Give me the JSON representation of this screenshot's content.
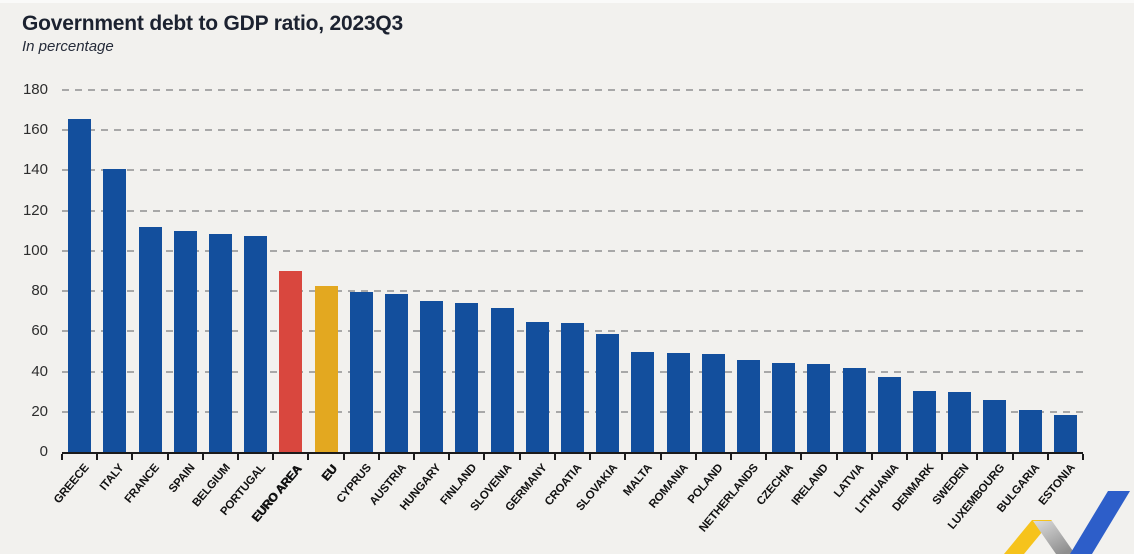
{
  "header": {
    "title": "Government debt to GDP ratio, 2023Q3",
    "subtitle": "In percentage"
  },
  "chart_data": {
    "type": "bar",
    "title": "Government debt to GDP ratio, 2023Q3",
    "subtitle": "In percentage",
    "xlabel": "",
    "ylabel": "",
    "ylim": [
      0,
      180
    ],
    "ytick_interval": 20,
    "yticks": [
      0,
      20,
      40,
      60,
      80,
      100,
      120,
      140,
      160,
      180
    ],
    "grid": "horizontal-dashed",
    "legend": "none",
    "colors": {
      "default": "#134f9d",
      "euro_area": "#d9473e",
      "eu": "#e3a820",
      "gridline": "#a8a8a8",
      "axis": "#1b1b1b",
      "background": "#f2f1ee"
    },
    "bars": [
      {
        "label": "GREECE",
        "value": 165.5
      },
      {
        "label": "ITALY",
        "value": 140.6
      },
      {
        "label": "FRANCE",
        "value": 111.9
      },
      {
        "label": "SPAIN",
        "value": 109.8
      },
      {
        "label": "BELGIUM",
        "value": 108.2
      },
      {
        "label": "PORTUGAL",
        "value": 107.5
      },
      {
        "label": "EURO AREA",
        "value": 89.9,
        "color": "#d9473e",
        "bold": true
      },
      {
        "label": "EU",
        "value": 82.6,
        "color": "#e3a820",
        "bold": true
      },
      {
        "label": "CYPRUS",
        "value": 79.4
      },
      {
        "label": "AUSTRIA",
        "value": 78.5
      },
      {
        "label": "HUNGARY",
        "value": 75.1
      },
      {
        "label": "FINLAND",
        "value": 74.2
      },
      {
        "label": "SLOVENIA",
        "value": 71.7
      },
      {
        "label": "GERMANY",
        "value": 64.8
      },
      {
        "label": "CROATIA",
        "value": 64.4
      },
      {
        "label": "SLOVAKIA",
        "value": 58.7
      },
      {
        "label": "MALTA",
        "value": 49.7
      },
      {
        "label": "ROMANIA",
        "value": 49.1
      },
      {
        "label": "POLAND",
        "value": 48.8
      },
      {
        "label": "NETHERLANDS",
        "value": 45.9
      },
      {
        "label": "CZECHIA",
        "value": 44.5
      },
      {
        "label": "IRELAND",
        "value": 43.7
      },
      {
        "label": "LATVIA",
        "value": 41.6
      },
      {
        "label": "LITHUANIA",
        "value": 37.3
      },
      {
        "label": "DENMARK",
        "value": 30.1
      },
      {
        "label": "SWEDEN",
        "value": 29.7
      },
      {
        "label": "LUXEMBOURG",
        "value": 25.7
      },
      {
        "label": "BULGARIA",
        "value": 21.0
      },
      {
        "label": "ESTONIA",
        "value": 18.2
      }
    ]
  },
  "logo": {
    "description": "yellow-blue ribbon mark, bottom right corner",
    "colors": {
      "yellow": "#f6c31c",
      "blue": "#2d5ec9",
      "fold_light": "#dddddd",
      "fold_dark": "#8e8e8e"
    }
  }
}
